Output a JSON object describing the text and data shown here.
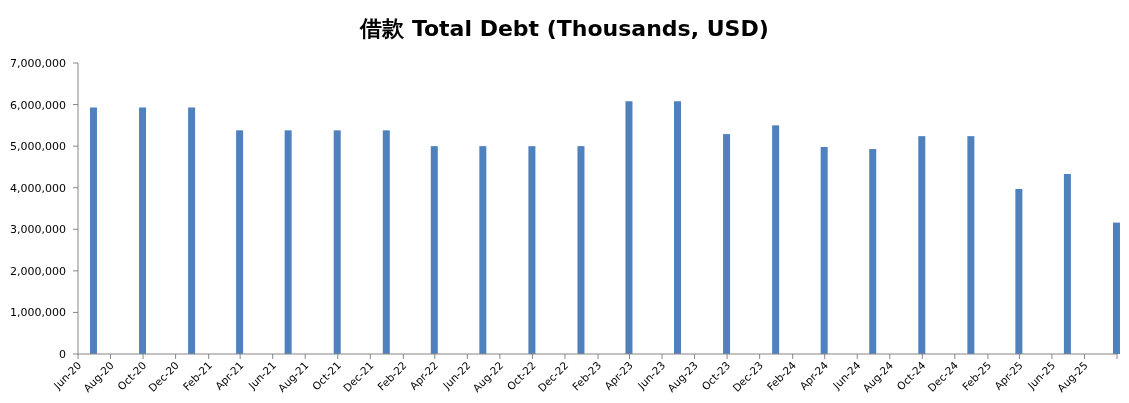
{
  "chart_data": {
    "type": "bar",
    "title": "借款 Total Debt (Thousands, USD)",
    "x": [
      "2020-06-30",
      "2020-09-30",
      "2020-12-31",
      "2021-03-31",
      "2021-06-30",
      "2021-09-30",
      "2021-12-31",
      "2022-03-31",
      "2022-06-30",
      "2022-09-30",
      "2022-12-31",
      "2023-03-31",
      "2023-06-30",
      "2023-09-30",
      "2023-12-31",
      "2024-03-31",
      "2024-06-30",
      "2024-09-30",
      "2024-12-31",
      "2025-03-31",
      "2025-06-30",
      "2025-09-30"
    ],
    "values": [
      5930000,
      5930000,
      5930000,
      5380000,
      5380000,
      5380000,
      5380000,
      5000000,
      5000000,
      5000000,
      5000000,
      6080000,
      6080000,
      5290000,
      5500000,
      4980000,
      4930000,
      5240000,
      5240000,
      3970000,
      4330000,
      3160000
    ],
    "color": "#4f81bd",
    "xlim": [
      "2020-06-01",
      "2025-10-01"
    ],
    "xticks": [
      {
        "value": "2020-06",
        "label": "Jun-20"
      },
      {
        "value": "2020-08",
        "label": "Aug-20"
      },
      {
        "value": "2020-10",
        "label": "Oct-20"
      },
      {
        "value": "2020-12",
        "label": "Dec-20"
      },
      {
        "value": "2021-02",
        "label": "Feb-21"
      },
      {
        "value": "2021-04",
        "label": "Apr-21"
      },
      {
        "value": "2021-06",
        "label": "Jun-21"
      },
      {
        "value": "2021-08",
        "label": "Aug-21"
      },
      {
        "value": "2021-10",
        "label": "Oct-21"
      },
      {
        "value": "2021-12",
        "label": "Dec-21"
      },
      {
        "value": "2022-02",
        "label": "Feb-22"
      },
      {
        "value": "2022-04",
        "label": "Apr-22"
      },
      {
        "value": "2022-06",
        "label": "Jun-22"
      },
      {
        "value": "2022-08",
        "label": "Aug-22"
      },
      {
        "value": "2022-10",
        "label": "Oct-22"
      },
      {
        "value": "2022-12",
        "label": "Dec-22"
      },
      {
        "value": "2023-02",
        "label": "Feb-23"
      },
      {
        "value": "2023-04",
        "label": "Apr-23"
      },
      {
        "value": "2023-06",
        "label": "Jun-23"
      },
      {
        "value": "2023-08",
        "label": "Aug-23"
      },
      {
        "value": "2023-10",
        "label": "Oct-23"
      },
      {
        "value": "2023-12",
        "label": "Dec-23"
      },
      {
        "value": "2024-02",
        "label": "Feb-24"
      },
      {
        "value": "2024-04",
        "label": "Apr-24"
      },
      {
        "value": "2024-06",
        "label": "Jun-24"
      },
      {
        "value": "2024-08",
        "label": "Aug-24"
      },
      {
        "value": "2024-10",
        "label": "Oct-24"
      },
      {
        "value": "2024-12",
        "label": "Dec-24"
      },
      {
        "value": "2025-02",
        "label": "Feb-25"
      },
      {
        "value": "2025-04",
        "label": "Apr-25"
      },
      {
        "value": "2025-06",
        "label": "Jun-25"
      },
      {
        "value": "2025-08",
        "label": "Aug-25"
      },
      {
        "value": "2025-10",
        "label": null
      }
    ],
    "ylim": [
      0,
      7000000
    ],
    "yticks": [
      0,
      {
        "value": 1000000,
        "label": "1,000,000"
      },
      {
        "value": 2000000,
        "label": "2,000,000"
      },
      {
        "value": 3000000,
        "label": "3,000,000"
      },
      {
        "value": 4000000,
        "label": "4,000,000"
      },
      {
        "value": 5000000,
        "label": "5,000,000"
      },
      {
        "value": 6000000,
        "label": "6,000,000"
      },
      {
        "value": 7000000,
        "label": "7,000,000"
      }
    ],
    "grid": false
  }
}
